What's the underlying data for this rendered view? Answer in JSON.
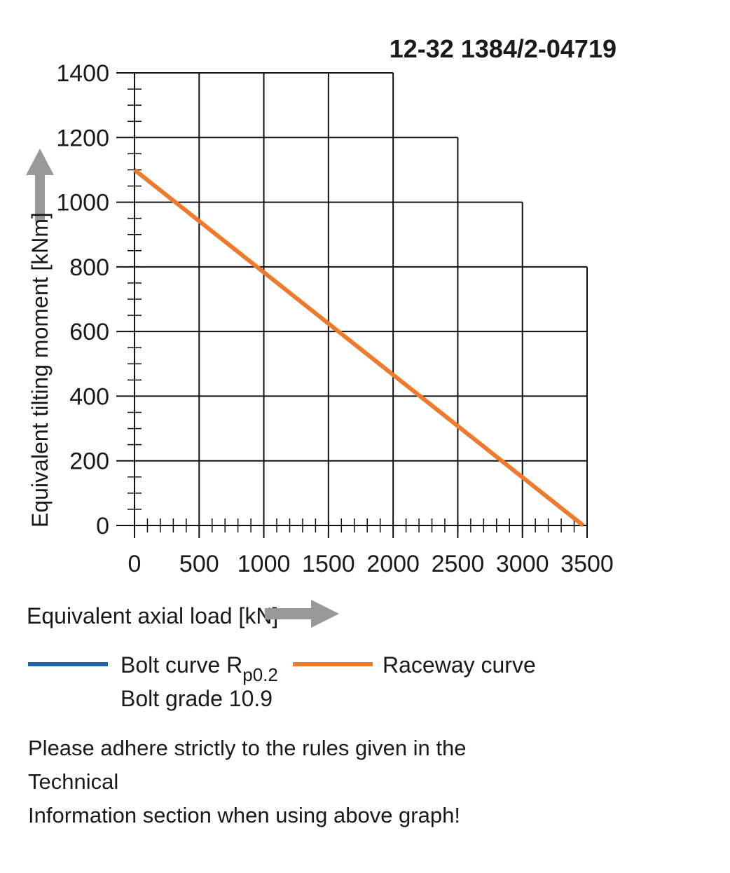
{
  "chart_data": {
    "type": "line",
    "title": "12-32 1384/2-04719",
    "xlabel": "Equivalent axial load [kN]",
    "ylabel": "Equivalent tilting moment [kNm]",
    "xlim": [
      0,
      3500
    ],
    "ylim": [
      0,
      1400
    ],
    "x_ticks": [
      0,
      500,
      1000,
      1500,
      2000,
      2500,
      3000,
      3500
    ],
    "y_ticks": [
      0,
      200,
      400,
      600,
      800,
      1000,
      1200,
      1400
    ],
    "grid": true,
    "grid_envelope": [
      {
        "x_to": 2000,
        "y_top": 1400
      },
      {
        "x_to": 2500,
        "y_top": 1200
      },
      {
        "x_to": 3000,
        "y_top": 1000
      },
      {
        "x_to": 3500,
        "y_top": 800
      }
    ],
    "series": [
      {
        "name": "Raceway curve",
        "color": "#f07a2c",
        "x": [
          0,
          3470
        ],
        "y": [
          1100,
          0
        ]
      }
    ],
    "legend": [
      {
        "label": "Bolt curve  R",
        "subscript": "p0.2",
        "second_line": "Bolt grade 10.9",
        "color": "#1f63a8"
      },
      {
        "label": "Raceway curve",
        "color": "#f07a2c"
      }
    ],
    "arrow_color": "#999999"
  },
  "note": {
    "line1": "Please adhere strictly to the rules given in the Technical",
    "line2": "Information section when using above graph!"
  }
}
